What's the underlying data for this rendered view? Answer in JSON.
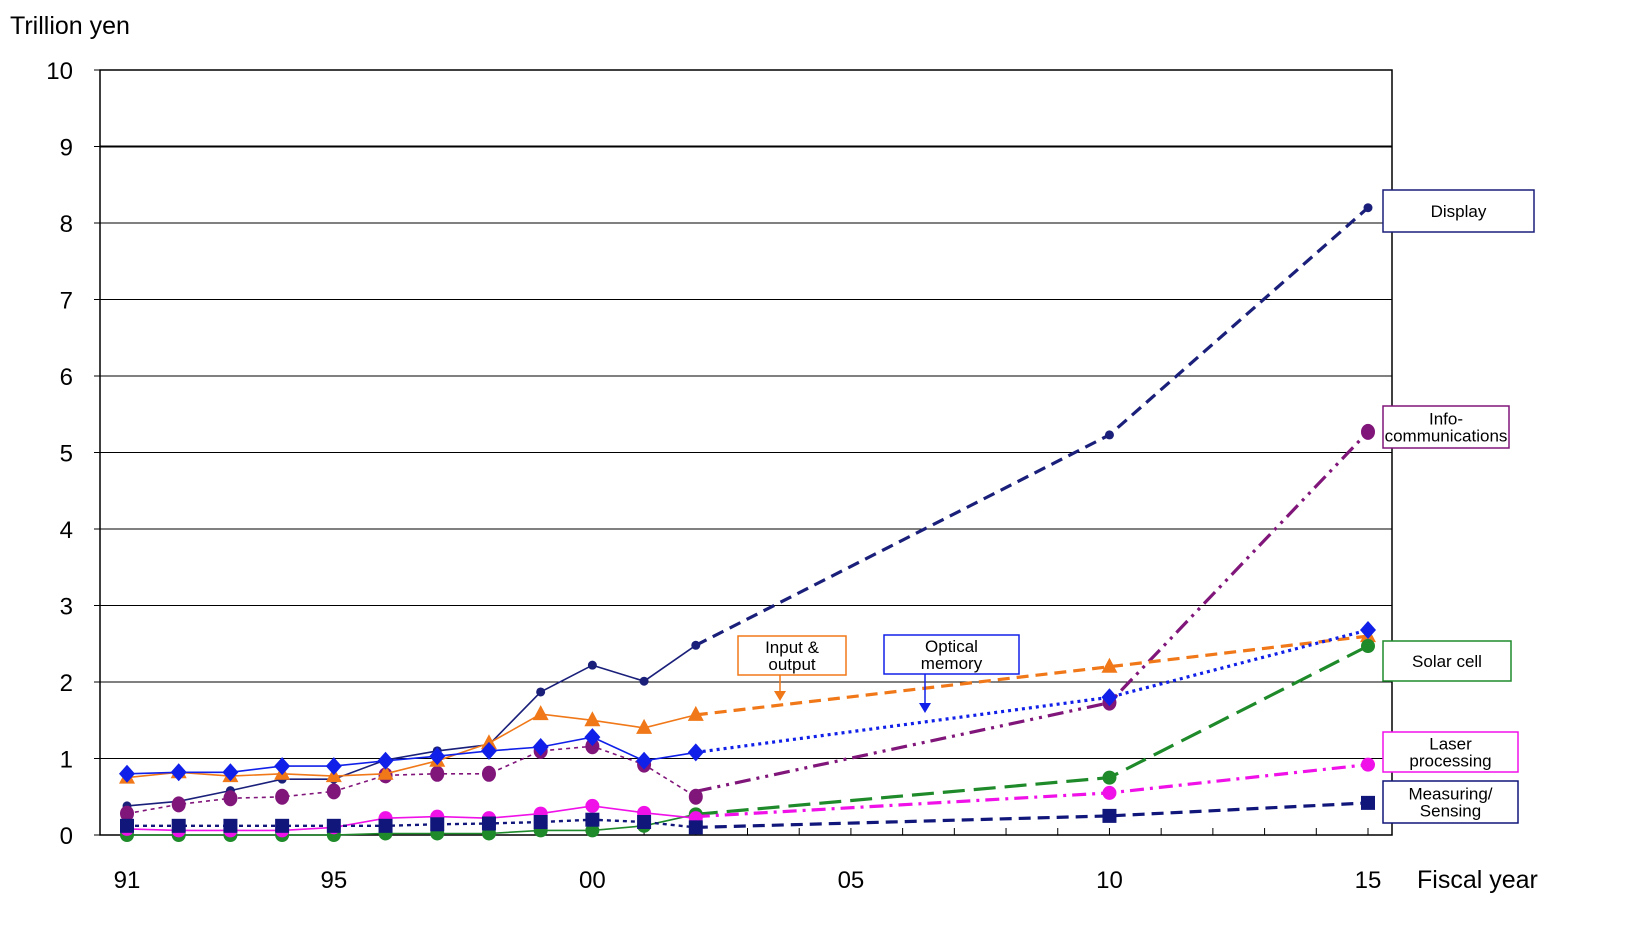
{
  "chart_data": {
    "type": "line",
    "ylabel": "Trillion yen",
    "xlabel": "Fiscal year",
    "ylim": [
      0,
      10
    ],
    "xlim": [
      1991,
      2015
    ],
    "y_ticks": [
      "0",
      "1",
      "2",
      "3",
      "4",
      "5",
      "6",
      "7",
      "8",
      "9",
      "10"
    ],
    "x_ticks": [
      {
        "x": 1991,
        "label": "91"
      },
      {
        "x": 1995,
        "label": "95"
      },
      {
        "x": 2000,
        "label": "00"
      },
      {
        "x": 2005,
        "label": "05"
      },
      {
        "x": 2010,
        "label": "10"
      },
      {
        "x": 2015,
        "label": "15"
      }
    ],
    "grid": true,
    "series": [
      {
        "name": "Display",
        "color": "#1a1f7a",
        "marker": "small-circle",
        "actual": [
          [
            1991,
            0.38
          ],
          [
            1992,
            0.44
          ],
          [
            1993,
            0.58
          ],
          [
            1994,
            0.73
          ],
          [
            1995,
            0.73
          ],
          [
            1996,
            0.98
          ],
          [
            1997,
            1.1
          ],
          [
            1998,
            1.18
          ],
          [
            1999,
            1.87
          ],
          [
            2000,
            2.22
          ],
          [
            2001,
            2.01
          ],
          [
            2002,
            2.48
          ]
        ],
        "forecast": [
          [
            2002,
            2.48
          ],
          [
            2010,
            5.23
          ],
          [
            2015,
            8.2
          ]
        ],
        "forecast_style": "dash"
      },
      {
        "name": "Info-communications",
        "color": "#80157a",
        "marker": "ellipse",
        "actual": [
          [
            1991,
            0.28
          ],
          [
            1992,
            0.4
          ],
          [
            1993,
            0.48
          ],
          [
            1994,
            0.5
          ],
          [
            1995,
            0.57
          ],
          [
            1996,
            0.78
          ],
          [
            1997,
            0.8
          ],
          [
            1998,
            0.8
          ],
          [
            1999,
            1.1
          ],
          [
            2000,
            1.16
          ],
          [
            2001,
            0.92
          ],
          [
            2002,
            0.5
          ]
        ],
        "forecast": [
          [
            2002,
            0.57
          ],
          [
            2010,
            1.73
          ],
          [
            2015,
            5.27
          ]
        ],
        "forecast_style": "dashdotdot"
      },
      {
        "name": "Input & output",
        "color": "#f07818",
        "marker": "triangle",
        "actual": [
          [
            1991,
            0.75
          ],
          [
            1992,
            0.82
          ],
          [
            1993,
            0.77
          ],
          [
            1994,
            0.8
          ],
          [
            1995,
            0.77
          ],
          [
            1996,
            0.8
          ],
          [
            1997,
            0.97
          ],
          [
            1998,
            1.2
          ],
          [
            1999,
            1.58
          ],
          [
            2000,
            1.5
          ],
          [
            2001,
            1.4
          ],
          [
            2002,
            1.57
          ]
        ],
        "forecast": [
          [
            2002,
            1.57
          ],
          [
            2010,
            2.2
          ],
          [
            2015,
            2.6
          ]
        ],
        "forecast_style": "dash"
      },
      {
        "name": "Optical memory",
        "color": "#1020e8",
        "marker": "diamond",
        "actual": [
          [
            1991,
            0.8
          ],
          [
            1992,
            0.82
          ],
          [
            1993,
            0.82
          ],
          [
            1994,
            0.9
          ],
          [
            1995,
            0.9
          ],
          [
            1996,
            0.97
          ],
          [
            1997,
            1.03
          ],
          [
            1998,
            1.1
          ],
          [
            1999,
            1.15
          ],
          [
            2000,
            1.28
          ],
          [
            2001,
            0.97
          ],
          [
            2002,
            1.08
          ]
        ],
        "forecast": [
          [
            2002,
            1.08
          ],
          [
            2010,
            1.8
          ],
          [
            2015,
            2.68
          ]
        ],
        "forecast_style": "dot"
      },
      {
        "name": "Solar cell",
        "color": "#1e8a2a",
        "marker": "circle",
        "actual": [
          [
            1991,
            0.0
          ],
          [
            1992,
            0.0
          ],
          [
            1993,
            0.0
          ],
          [
            1994,
            0.0
          ],
          [
            1995,
            0.0
          ],
          [
            1996,
            0.02
          ],
          [
            1997,
            0.02
          ],
          [
            1998,
            0.02
          ],
          [
            1999,
            0.06
          ],
          [
            2000,
            0.06
          ],
          [
            2001,
            0.12
          ],
          [
            2002,
            0.27
          ]
        ],
        "forecast": [
          [
            2002,
            0.27
          ],
          [
            2010,
            0.75
          ],
          [
            2015,
            2.47
          ]
        ],
        "forecast_style": "longdash"
      },
      {
        "name": "Laser processing",
        "color": "#f010e8",
        "marker": "circle",
        "actual": [
          [
            1991,
            0.08
          ],
          [
            1992,
            0.06
          ],
          [
            1993,
            0.06
          ],
          [
            1994,
            0.06
          ],
          [
            1995,
            0.1
          ],
          [
            1996,
            0.22
          ],
          [
            1997,
            0.24
          ],
          [
            1998,
            0.22
          ],
          [
            1999,
            0.28
          ],
          [
            2000,
            0.38
          ],
          [
            2001,
            0.29
          ],
          [
            2002,
            0.22
          ]
        ],
        "forecast": [
          [
            2002,
            0.24
          ],
          [
            2010,
            0.55
          ],
          [
            2015,
            0.92
          ]
        ],
        "forecast_style": "dashdot"
      },
      {
        "name": "Measuring/ Sensing",
        "color": "#10167a",
        "marker": "square",
        "actual": [
          [
            1991,
            0.12
          ],
          [
            1992,
            0.12
          ],
          [
            1993,
            0.12
          ],
          [
            1994,
            0.12
          ],
          [
            1995,
            0.12
          ],
          [
            1996,
            0.12
          ],
          [
            1997,
            0.14
          ],
          [
            1998,
            0.15
          ],
          [
            1999,
            0.17
          ],
          [
            2000,
            0.2
          ],
          [
            2001,
            0.17
          ],
          [
            2002,
            0.1
          ]
        ],
        "forecast": [
          [
            2002,
            0.1
          ],
          [
            2010,
            0.25
          ],
          [
            2015,
            0.42
          ]
        ],
        "forecast_style": "dash"
      }
    ],
    "labels": [
      {
        "text": "Display",
        "series": 0,
        "color": "#1a1f7a"
      },
      {
        "text": "Info-\ncommunications",
        "series": 1,
        "color": "#80157a"
      },
      {
        "text": "Input &\noutput",
        "series": 2,
        "color": "#f07818",
        "arrow": true
      },
      {
        "text": "Optical\nmemory",
        "series": 3,
        "color": "#1020e8",
        "arrow": true
      },
      {
        "text": "Solar cell",
        "series": 4,
        "color": "#1e8a2a"
      },
      {
        "text": "Laser\nprocessing",
        "series": 5,
        "color": "#f010e8"
      },
      {
        "text": "Measuring/\nSensing",
        "series": 6,
        "color": "#10167a"
      }
    ]
  }
}
